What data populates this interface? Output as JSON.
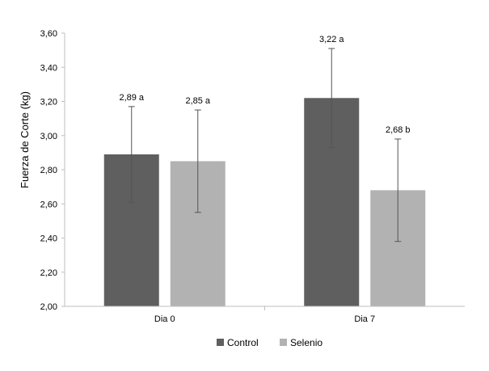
{
  "chart_data": {
    "type": "bar",
    "title": "",
    "xlabel": "",
    "ylabel": "Fuerza de Corte (kg)",
    "ylim": [
      2.0,
      3.6
    ],
    "yticks": [
      "2,00",
      "2,20",
      "2,40",
      "2,60",
      "2,80",
      "3,00",
      "3,20",
      "3,40",
      "3,60"
    ],
    "ytick_values": [
      2.0,
      2.2,
      2.4,
      2.6,
      2.8,
      3.0,
      3.2,
      3.4,
      3.6
    ],
    "categories": [
      "Dia 0",
      "Dia 7"
    ],
    "series": [
      {
        "name": "Control",
        "color": "#5f5f5f",
        "values": [
          2.89,
          3.22
        ],
        "error_low": [
          2.61,
          2.93
        ],
        "error_high": [
          3.17,
          3.51
        ],
        "labels": [
          "2,89 a",
          "3,22 a"
        ]
      },
      {
        "name": "Selenio",
        "color": "#b2b2b2",
        "values": [
          2.85,
          2.68
        ],
        "error_low": [
          2.55,
          2.38
        ],
        "error_high": [
          3.15,
          2.98
        ],
        "labels": [
          "2,85 a",
          "2,68 b"
        ]
      }
    ],
    "grid": false,
    "legend_position": "bottom"
  }
}
